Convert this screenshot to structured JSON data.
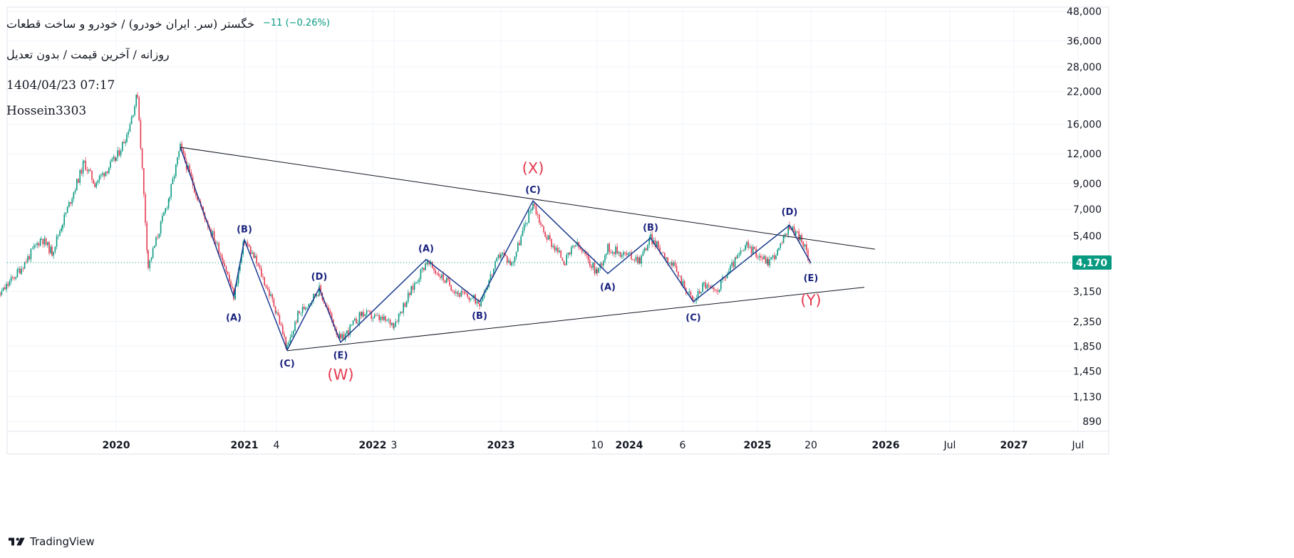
{
  "header": {
    "title": "خگستر (سر. ایران خودرو) / خودرو و ساخت قطعات",
    "change": "−11 (−0.26%)",
    "subtitle": "روزانه / آخرین قیمت / بدون تعدیل",
    "datetime": "1404/04/23 07:17",
    "author": "Hossein3303"
  },
  "footer": {
    "brand": "TradingView",
    "brand_icon": "tradingview-logo-icon"
  },
  "colors": {
    "up": "#089981",
    "down": "#e53950",
    "wave_line": "#1a3a8f",
    "trendline": "#131722",
    "price_badge": "#089981",
    "grid": "#f0f3fa"
  },
  "chart_data": {
    "type": "candlestick",
    "scale": "log",
    "last_price": "4,170",
    "last_price_value": 4170,
    "y_ticks": [
      {
        "label": "48,000",
        "value": 48000
      },
      {
        "label": "36,000",
        "value": 36000
      },
      {
        "label": "28,000",
        "value": 28000
      },
      {
        "label": "22,000",
        "value": 22000
      },
      {
        "label": "16,000",
        "value": 16000
      },
      {
        "label": "12,000",
        "value": 12000
      },
      {
        "label": "9,000",
        "value": 9000
      },
      {
        "label": "7,000",
        "value": 7000
      },
      {
        "label": "5,400",
        "value": 5400
      },
      {
        "label": "3,150",
        "value": 3150
      },
      {
        "label": "2,350",
        "value": 2350
      },
      {
        "label": "1,850",
        "value": 1850
      },
      {
        "label": "1,450",
        "value": 1450
      },
      {
        "label": "1,130",
        "value": 1130
      },
      {
        "label": "890",
        "value": 890
      }
    ],
    "x_ticks": [
      {
        "label": "2020",
        "date": "2020-01",
        "year": true
      },
      {
        "label": "2021",
        "date": "2021-01",
        "year": true
      },
      {
        "label": "4",
        "date": "2021-04",
        "year": false
      },
      {
        "label": "2022",
        "date": "2022-01",
        "year": true
      },
      {
        "label": "3",
        "date": "2022-03",
        "year": false
      },
      {
        "label": "2023",
        "date": "2023-01",
        "year": true
      },
      {
        "label": "10",
        "date": "2023-10",
        "year": false
      },
      {
        "label": "2024",
        "date": "2024-01",
        "year": true
      },
      {
        "label": "6",
        "date": "2024-06",
        "year": false
      },
      {
        "label": "2025",
        "date": "2025-01",
        "year": true
      },
      {
        "label": "20",
        "date": "2025-06",
        "year": false
      },
      {
        "label": "2026",
        "date": "2026-01",
        "year": true
      },
      {
        "label": "Jul",
        "date": "2026-07",
        "year": false
      },
      {
        "label": "2027",
        "date": "2027-01",
        "year": true
      },
      {
        "label": "Jul",
        "date": "2027-07",
        "year": false
      }
    ],
    "price_path": [
      {
        "date": "2019-01",
        "price": 3250
      },
      {
        "date": "2019-02",
        "price": 3000
      },
      {
        "date": "2019-04",
        "price": 3900
      },
      {
        "date": "2019-06",
        "price": 5300
      },
      {
        "date": "2019-07",
        "price": 4600
      },
      {
        "date": "2019-08",
        "price": 6200
      },
      {
        "date": "2019-10",
        "price": 11000
      },
      {
        "date": "2019-11",
        "price": 9000
      },
      {
        "date": "2020-01",
        "price": 11500
      },
      {
        "date": "2020-02",
        "price": 14500
      },
      {
        "date": "2020-03",
        "price": 21500
      },
      {
        "date": "2020-04",
        "price": 4000
      },
      {
        "date": "2020-06",
        "price": 8000
      },
      {
        "date": "2020-07",
        "price": 12800
      },
      {
        "date": "2020-09",
        "price": 7000
      },
      {
        "date": "2020-11",
        "price": 4300
      },
      {
        "date": "2020-12",
        "price": 3000
      },
      {
        "date": "2021-01",
        "price": 5200
      },
      {
        "date": "2021-02",
        "price": 4300
      },
      {
        "date": "2021-04",
        "price": 2600
      },
      {
        "date": "2021-05",
        "price": 1800
      },
      {
        "date": "2021-06",
        "price": 2500
      },
      {
        "date": "2021-08",
        "price": 3200
      },
      {
        "date": "2021-10",
        "price": 1950
      },
      {
        "date": "2021-12",
        "price": 2550
      },
      {
        "date": "2022-03",
        "price": 2300
      },
      {
        "date": "2022-06",
        "price": 4200
      },
      {
        "date": "2022-09",
        "price": 3100
      },
      {
        "date": "2022-11",
        "price": 2850
      },
      {
        "date": "2023-01",
        "price": 4600
      },
      {
        "date": "2023-02",
        "price": 4100
      },
      {
        "date": "2023-04",
        "price": 7500
      },
      {
        "date": "2023-05",
        "price": 5600
      },
      {
        "date": "2023-07",
        "price": 4200
      },
      {
        "date": "2023-08",
        "price": 5000
      },
      {
        "date": "2023-10",
        "price": 3800
      },
      {
        "date": "2023-11",
        "price": 4800
      },
      {
        "date": "2024-02",
        "price": 4300
      },
      {
        "date": "2024-03",
        "price": 5300
      },
      {
        "date": "2024-05",
        "price": 4100
      },
      {
        "date": "2024-07",
        "price": 2850
      },
      {
        "date": "2024-08",
        "price": 3400
      },
      {
        "date": "2024-09",
        "price": 3100
      },
      {
        "date": "2024-11",
        "price": 4300
      },
      {
        "date": "2024-12",
        "price": 4900
      },
      {
        "date": "2025-02",
        "price": 4200
      },
      {
        "date": "2025-03",
        "price": 4700
      },
      {
        "date": "2025-04",
        "price": 6000
      },
      {
        "date": "2025-05",
        "price": 5300
      },
      {
        "date": "2025-06",
        "price": 4170
      }
    ],
    "trendlines": [
      {
        "from": {
          "date": "2020-07",
          "price": 12800
        },
        "to": {
          "date": "2025-12",
          "price": 4750
        }
      },
      {
        "from": {
          "date": "2021-05",
          "price": 1770
        },
        "to": {
          "date": "2025-11",
          "price": 3280
        }
      }
    ],
    "wave_path": [
      {
        "date": "2020-07",
        "price": 12800
      },
      {
        "date": "2020-12",
        "price": 3000
      },
      {
        "date": "2021-01",
        "price": 5200
      },
      {
        "date": "2021-05",
        "price": 1780
      },
      {
        "date": "2021-08",
        "price": 3250
      },
      {
        "date": "2021-10",
        "price": 1920
      },
      {
        "date": "2022-06",
        "price": 4300
      },
      {
        "date": "2022-11",
        "price": 2850
      },
      {
        "date": "2023-04",
        "price": 7600
      },
      {
        "date": "2023-11",
        "price": 3750
      },
      {
        "date": "2024-03",
        "price": 5300
      },
      {
        "date": "2024-07",
        "price": 2850
      },
      {
        "date": "2025-04",
        "price": 6000
      },
      {
        "date": "2025-06",
        "price": 4150
      }
    ],
    "wave_labels": [
      {
        "text": "(A)",
        "date": "2020-12",
        "price": 2450,
        "size": "small"
      },
      {
        "text": "(B)",
        "date": "2021-01",
        "price": 5800,
        "size": "small"
      },
      {
        "text": "(C)",
        "date": "2021-05",
        "price": 1570,
        "size": "small"
      },
      {
        "text": "(D)",
        "date": "2021-08",
        "price": 3650,
        "size": "small"
      },
      {
        "text": "(E)",
        "date": "2021-10",
        "price": 1700,
        "size": "small"
      },
      {
        "text": "(W)",
        "date": "2021-10",
        "price": 1380,
        "size": "big"
      },
      {
        "text": "(A)",
        "date": "2022-06",
        "price": 4800,
        "size": "small"
      },
      {
        "text": "(B)",
        "date": "2022-11",
        "price": 2500,
        "size": "small"
      },
      {
        "text": "(C)",
        "date": "2023-04",
        "price": 8500,
        "size": "small"
      },
      {
        "text": "(X)",
        "date": "2023-04",
        "price": 10300,
        "size": "big"
      },
      {
        "text": "(A)",
        "date": "2023-11",
        "price": 3300,
        "size": "small"
      },
      {
        "text": "(B)",
        "date": "2024-03",
        "price": 5900,
        "size": "small"
      },
      {
        "text": "(C)",
        "date": "2024-07",
        "price": 2450,
        "size": "small"
      },
      {
        "text": "(D)",
        "date": "2025-04",
        "price": 6850,
        "size": "small"
      },
      {
        "text": "(E)",
        "date": "2025-06",
        "price": 3600,
        "size": "small"
      },
      {
        "text": "(Y)",
        "date": "2025-06",
        "price": 2850,
        "size": "big"
      }
    ]
  }
}
